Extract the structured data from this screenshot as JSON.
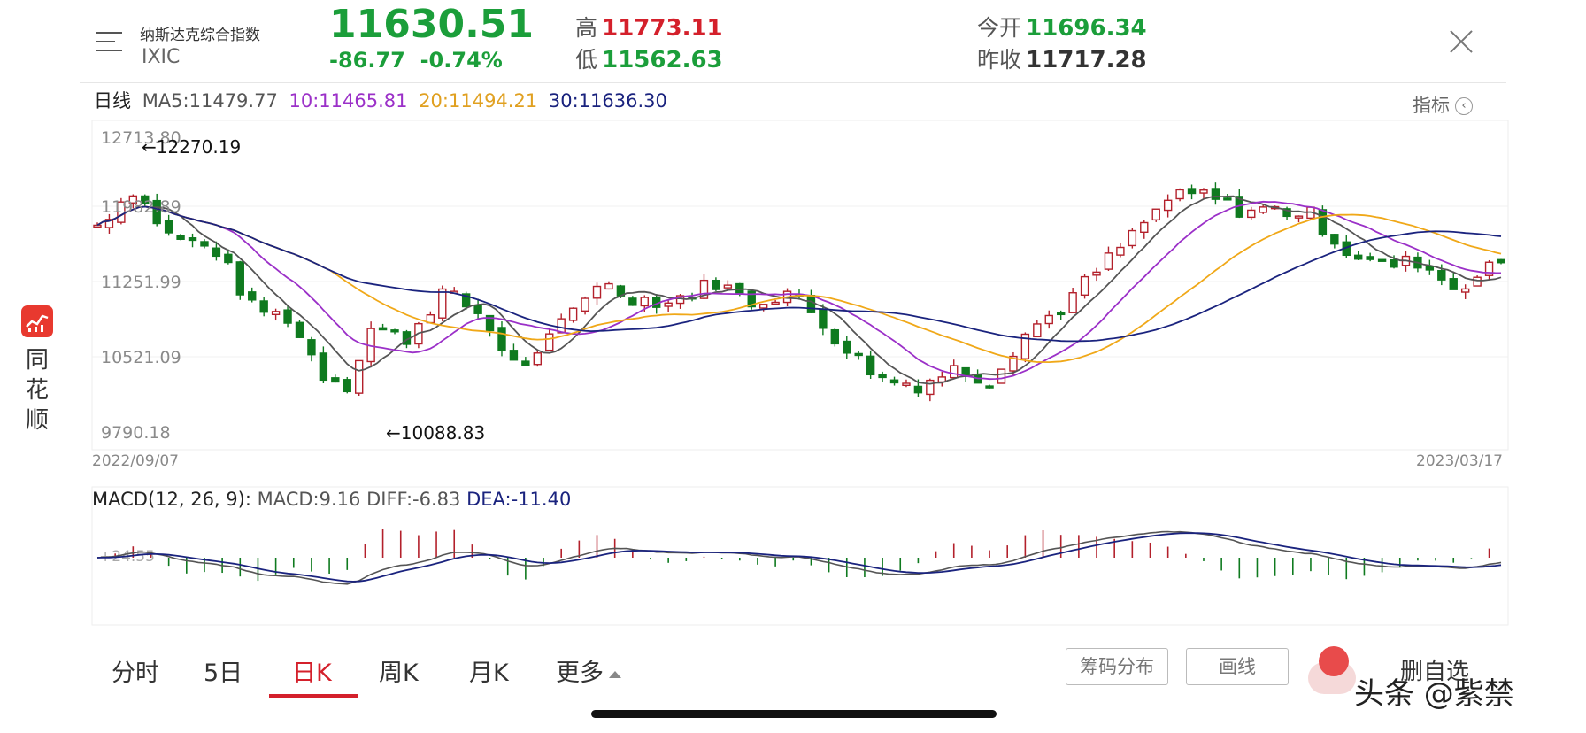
{
  "app": {
    "name_chars": [
      "同",
      "花",
      "顺"
    ]
  },
  "quote": {
    "name": "纳斯达克综合指数",
    "code": "IXIC",
    "price": "11630.51",
    "change": "-86.77",
    "change_pct": "-0.74%",
    "high_label": "高",
    "high": "11773.11",
    "low_label": "低",
    "low": "11562.63",
    "open_label": "今开",
    "open": "11696.34",
    "prev_close_label": "昨收",
    "prev_close": "11717.28"
  },
  "ma_legend": {
    "period": "日线",
    "ma5": "MA5:11479.77",
    "ma10": "10:11465.81",
    "ma20": "20:11494.21",
    "ma30": "30:11636.30"
  },
  "indicator_button": "指标",
  "colors": {
    "up": "#b3202b",
    "down": "#0f7a1f",
    "ma5": "#555555",
    "ma10": "#9b30c8",
    "ma20": "#f0a818",
    "ma30": "#1a237e"
  },
  "kchart": {
    "y_ticks": [
      "12713.80",
      "11982.89",
      "11251.99",
      "10521.09",
      "9790.18"
    ],
    "y_range": [
      9790.18,
      12713.8
    ],
    "high_mark": "←12270.19",
    "low_mark": "←10088.83",
    "start_date": "2022/09/07",
    "end_date": "2023/03/17"
  },
  "macd": {
    "label": "MACD(12, 26, 9):",
    "macd": "MACD:9.16",
    "diff": "DIFF:-6.83",
    "dea": "DEA:-11.40",
    "axis_label": "24.55"
  },
  "tabs": [
    {
      "label": "分时"
    },
    {
      "label": "5日"
    },
    {
      "label": "日K"
    },
    {
      "label": "周K"
    },
    {
      "label": "月K"
    },
    {
      "label": "更多"
    }
  ],
  "active_tab": "日K",
  "buttons": {
    "chips": "筹码分布",
    "draw": "画线",
    "remove_fav": "删自选"
  },
  "watermark": "头条 @紫禁"
}
